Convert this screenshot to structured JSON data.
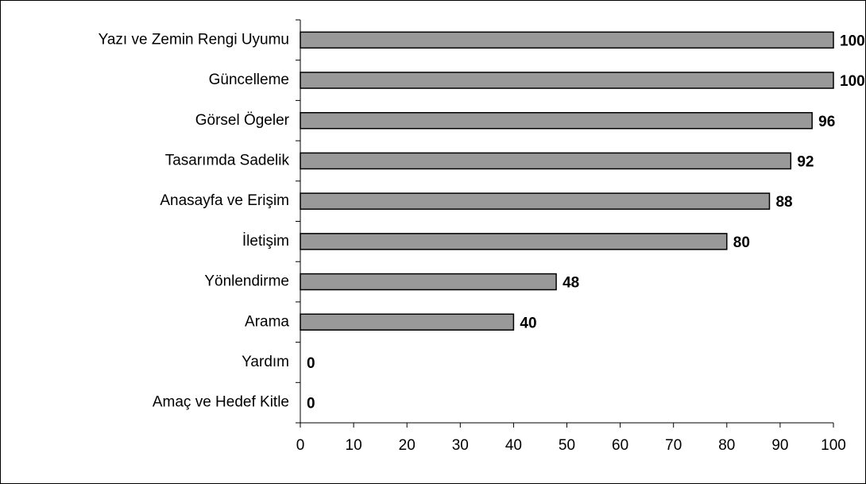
{
  "chart_data": {
    "type": "bar",
    "orientation": "horizontal",
    "categories": [
      "Yazı ve Zemin Rengi Uyumu",
      "Güncelleme",
      "Görsel Ögeler",
      "Tasarımda Sadelik",
      "Anasayfa ve Erişim",
      "İletişim",
      "Yönlendirme",
      "Arama",
      "Yardım",
      "Amaç ve Hedef Kitle"
    ],
    "values": [
      100,
      100,
      96,
      92,
      88,
      80,
      48,
      40,
      0,
      0
    ],
    "color": "#999999",
    "xlim": [
      0,
      100
    ],
    "xticks": [
      0,
      10,
      20,
      30,
      40,
      50,
      60,
      70,
      80,
      90,
      100
    ],
    "grid": false
  }
}
